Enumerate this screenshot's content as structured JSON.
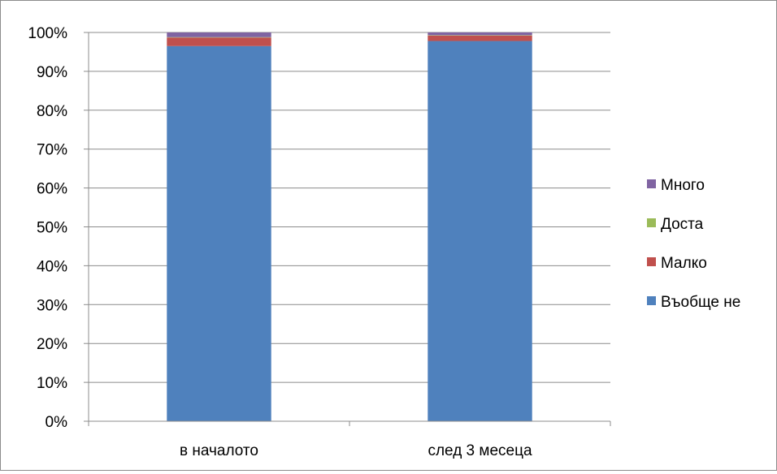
{
  "chart_data": {
    "type": "bar",
    "stacked": true,
    "percent_stacked": true,
    "title": "",
    "xlabel": "",
    "ylabel": "",
    "ylim": [
      0,
      100
    ],
    "y_ticks": [
      "0%",
      "10%",
      "20%",
      "30%",
      "40%",
      "50%",
      "60%",
      "70%",
      "80%",
      "90%",
      "100%"
    ],
    "grid": true,
    "legend_position": "right",
    "categories": [
      "в началото",
      "след 3 месеца"
    ],
    "series": [
      {
        "name": "Въобще не",
        "color": "#4f81bd",
        "values": [
          96.5,
          97.8
        ]
      },
      {
        "name": "Малко",
        "color": "#c0504d",
        "values": [
          2.2,
          1.4
        ]
      },
      {
        "name": "Доста",
        "color": "#9bbb59",
        "values": [
          0.1,
          0.1
        ]
      },
      {
        "name": "Много",
        "color": "#8064a2",
        "values": [
          1.2,
          0.7
        ]
      }
    ]
  }
}
